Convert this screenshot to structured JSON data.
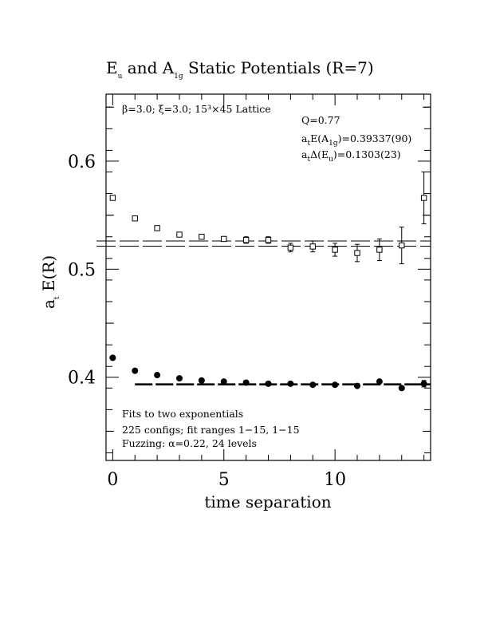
{
  "chart_data": {
    "type": "scatter",
    "title": {
      "main": "E",
      "sub": "u",
      "mid": " and A",
      "sub2": "1g",
      "tail": " Static Potentials (R=7)"
    },
    "xlabel": "time separation",
    "ylabel": {
      "main": "a",
      "sub": "t",
      "tail": " E(R)"
    },
    "xlim": [
      -0.3,
      14.3
    ],
    "ylim": [
      0.323,
      0.662
    ],
    "x_ticks": [
      "0",
      "5",
      "10"
    ],
    "x_tick_values": [
      0,
      5,
      10
    ],
    "y_ticks": [
      "0.4",
      "0.5",
      "0.6"
    ],
    "y_tick_values": [
      0.4,
      0.5,
      0.6
    ],
    "annotations": {
      "lattice": "β=3.0; ξ=3.0; 15³×45 Lattice",
      "q": "Q=0.77",
      "a1g_fit": {
        "main": "a",
        "sub": "t",
        "mid": "E(A",
        "sub2": "1g",
        "tail": ")=0.39337(90)"
      },
      "eu_fit": {
        "main": "a",
        "sub": "t",
        "mid": "Δ(E",
        "sub2": "u",
        "tail": ")=0.1303(23)"
      },
      "fits": "Fits to two exponentials",
      "configs": "225 configs; fit ranges 1−15, 1−15",
      "fuzzing": "Fuzzing: α=0.22, 24 levels"
    },
    "series": [
      {
        "name": "A1g",
        "marker": "filled-circle",
        "x": [
          0,
          1,
          2,
          3,
          4,
          5,
          6,
          7,
          8,
          9,
          10,
          11,
          12,
          13,
          14
        ],
        "y": [
          0.418,
          0.406,
          0.402,
          0.399,
          0.397,
          0.396,
          0.395,
          0.394,
          0.394,
          0.393,
          0.393,
          0.392,
          0.396,
          0.39,
          0.394
        ],
        "err": [
          0.001,
          0.001,
          0.001,
          0.001,
          0.001,
          0.001,
          0.001,
          0.001,
          0.001,
          0.001,
          0.001,
          0.001,
          0.002,
          0.002,
          0.003
        ]
      },
      {
        "name": "Eu",
        "marker": "open-square",
        "x": [
          0,
          1,
          2,
          3,
          4,
          5,
          6,
          7,
          8,
          9,
          10,
          11,
          12,
          13,
          14
        ],
        "y": [
          0.566,
          0.547,
          0.538,
          0.532,
          0.53,
          0.528,
          0.527,
          0.527,
          0.52,
          0.521,
          0.518,
          0.515,
          0.518,
          0.522,
          0.566
        ],
        "err": [
          0.002,
          0.002,
          0.002,
          0.002,
          0.002,
          0.002,
          0.003,
          0.003,
          0.004,
          0.005,
          0.006,
          0.008,
          0.01,
          0.017,
          0.024
        ]
      }
    ],
    "fits": [
      {
        "name": "A1g",
        "value": 0.39337,
        "err": 0.0009,
        "x_range": [
          1,
          14.3
        ]
      },
      {
        "name": "Eu",
        "value": 0.5237,
        "err": 0.0024,
        "x_range": [
          -0.8,
          14.3
        ]
      }
    ]
  }
}
